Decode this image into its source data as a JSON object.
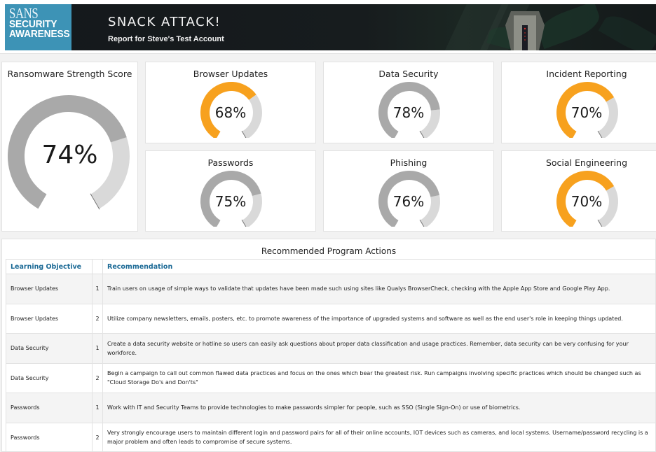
{
  "header": {
    "logo": {
      "line1": "SANS",
      "line2": "SECURITY",
      "line3": "AWARENESS"
    },
    "title": "SNACK ATTACK!",
    "subtitle": "Report for Steve's Test Account"
  },
  "colors": {
    "accent_orange": "#f7a11e",
    "gauge_gray": "#a9a9a9",
    "gauge_track": "#d9d9d9",
    "logo_blue": "#3d93b6",
    "header_link_blue": "#1c6a96"
  },
  "main_score": {
    "label": "Ransomware Strength Score",
    "value": 74,
    "display": "74%",
    "color": "#a9a9a9"
  },
  "gauges": [
    {
      "label": "Browser Updates",
      "value": 68,
      "display": "68%",
      "color": "#f7a11e"
    },
    {
      "label": "Data Security",
      "value": 78,
      "display": "78%",
      "color": "#a9a9a9"
    },
    {
      "label": "Incident Reporting",
      "value": 70,
      "display": "70%",
      "color": "#f7a11e"
    },
    {
      "label": "Passwords",
      "value": 75,
      "display": "75%",
      "color": "#a9a9a9"
    },
    {
      "label": "Phishing",
      "value": 76,
      "display": "76%",
      "color": "#a9a9a9"
    },
    {
      "label": "Social Engineering",
      "value": 70,
      "display": "70%",
      "color": "#f7a11e"
    }
  ],
  "actions": {
    "title": "Recommended Program Actions",
    "columns": [
      "Learning Objective",
      "",
      "Recommendation"
    ],
    "rows": [
      {
        "objective": "Browser Updates",
        "n": "1",
        "text": "Train users on usage of simple ways to validate that updates have been made such using sites like Qualys BrowserCheck, checking with the Apple App Store and Google Play App."
      },
      {
        "objective": "Browser Updates",
        "n": "2",
        "text": "Utilize company newsletters, emails, posters, etc. to promote awareness of the importance of upgraded systems and software as well as the end user's role in keeping things updated."
      },
      {
        "objective": "Data Security",
        "n": "1",
        "text": "Create a data security website or hotline so users can easily ask questions about proper data classification and usage practices. Remember, data security can be very confusing for your workforce."
      },
      {
        "objective": "Data Security",
        "n": "2",
        "text": "Begin a campaign to call out common flawed data practices and focus on the ones which bear the greatest risk. Run campaigns involving specific practices which should be changed such as \"Cloud Storage Do's and Don'ts\""
      },
      {
        "objective": "Passwords",
        "n": "1",
        "text": "Work with IT and Security Teams to provide technologies to make passwords simpler for people, such as SSO (Single Sign-On) or use of biometrics."
      },
      {
        "objective": "Passwords",
        "n": "2",
        "text": "Very strongly encourage users to maintain different login and password pairs for all of their online accounts, IOT devices such as cameras, and local systems. Username/password recycling is a major problem and often leads to compromise of secure systems."
      }
    ]
  }
}
